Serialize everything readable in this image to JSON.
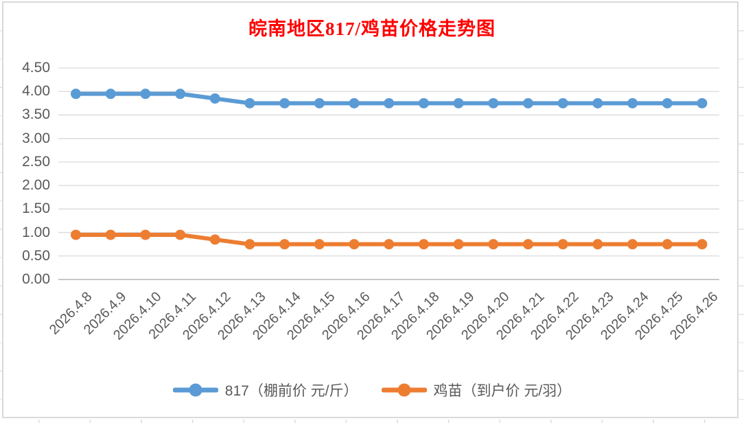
{
  "title": {
    "text": "皖南地区817/鸡苗价格走势图",
    "color": "#FF0000"
  },
  "axis_text_color": "#595959",
  "chart_data": {
    "type": "line",
    "title": "皖南地区817/鸡苗价格走势图",
    "categories": [
      "2026.4.8",
      "2026.4.9",
      "2026.4.10",
      "2026.4.11",
      "2026.4.12",
      "2026.4.13",
      "2026.4.14",
      "2026.4.15",
      "2026.4.16",
      "2026.4.17",
      "2026.4.18",
      "2026.4.19",
      "2026.4.20",
      "2026.4.21",
      "2026.4.22",
      "2026.4.23",
      "2026.4.24",
      "2026.4.25",
      "2026.4.26"
    ],
    "series": [
      {
        "name": "817（棚前价 元/斤）",
        "color": "#5B9BD5",
        "values": [
          3.95,
          3.95,
          3.95,
          3.95,
          3.85,
          3.75,
          3.75,
          3.75,
          3.75,
          3.75,
          3.75,
          3.75,
          3.75,
          3.75,
          3.75,
          3.75,
          3.75,
          3.75,
          3.75
        ]
      },
      {
        "name": "鸡苗（到户价 元/羽）",
        "color": "#ED7D31",
        "values": [
          0.95,
          0.95,
          0.95,
          0.95,
          0.85,
          0.75,
          0.75,
          0.75,
          0.75,
          0.75,
          0.75,
          0.75,
          0.75,
          0.75,
          0.75,
          0.75,
          0.75,
          0.75,
          0.75
        ]
      }
    ],
    "xlabel": "",
    "ylabel": "",
    "ylim": [
      0,
      4.5
    ],
    "ytick_labels": [
      "0.00",
      "0.50",
      "1.00",
      "1.50",
      "2.00",
      "2.50",
      "3.00",
      "3.50",
      "4.00",
      "4.50"
    ],
    "grid": "horizontal",
    "gridline_color": "#D9D9D9",
    "axis_line_color": "#BFBFBF",
    "legend_position": "bottom",
    "marker": "circle"
  }
}
